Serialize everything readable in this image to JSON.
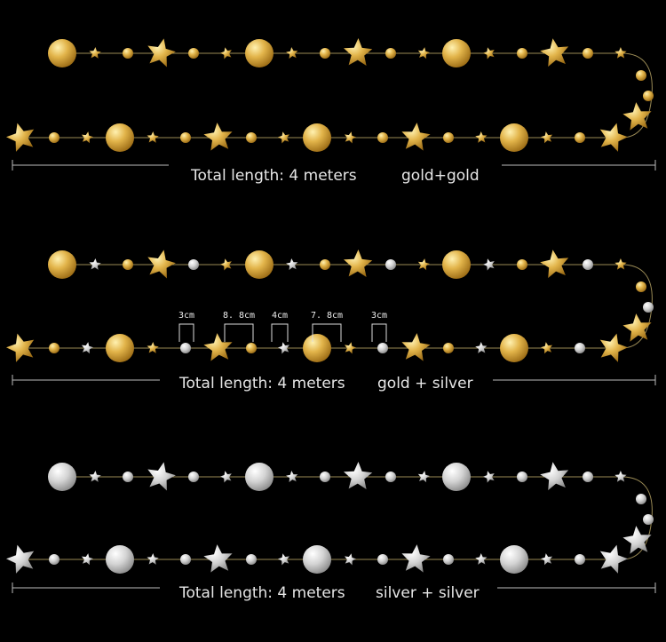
{
  "panels": [
    {
      "length": "Total length: 4 meters",
      "variant": "gold+gold"
    },
    {
      "length": "Total length: 4 meters",
      "variant": "gold + silver",
      "dimensions": [
        "3cm",
        "8. 8cm",
        "4cm",
        "7. 8cm",
        "3cm"
      ]
    },
    {
      "length": "Total length: 4 meters",
      "variant": "silver + silver"
    }
  ]
}
